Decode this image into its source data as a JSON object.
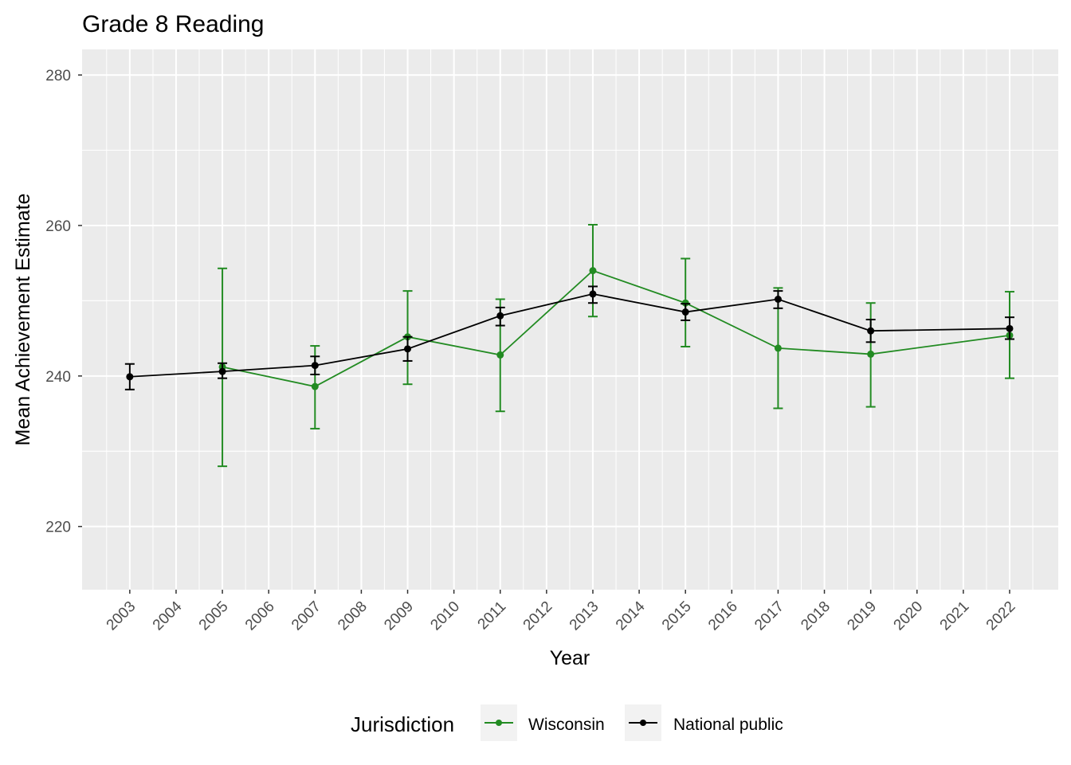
{
  "chart_data": {
    "type": "line",
    "title": "Grade 8 Reading",
    "xlabel": "Year",
    "ylabel": "Mean Achievement Estimate",
    "xlim": [
      2001.97,
      2023.05
    ],
    "ylim": [
      211.6,
      283.4
    ],
    "x_ticks": [
      2003,
      2004,
      2005,
      2006,
      2007,
      2008,
      2009,
      2010,
      2011,
      2012,
      2013,
      2014,
      2015,
      2016,
      2017,
      2018,
      2019,
      2020,
      2021,
      2022
    ],
    "y_ticks": [
      220,
      240,
      260,
      280
    ],
    "grid": true,
    "legend": {
      "title": "Jurisdiction",
      "position": "bottom"
    },
    "series": [
      {
        "name": "Wisconsin",
        "color": "#228B22",
        "x": [
          2005,
          2007,
          2009,
          2011,
          2013,
          2015,
          2017,
          2019,
          2022
        ],
        "y": [
          241.2,
          238.6,
          245.2,
          242.8,
          254.0,
          249.7,
          243.7,
          242.9,
          245.4
        ],
        "lower": [
          228.0,
          233.0,
          238.9,
          235.3,
          247.9,
          243.9,
          235.7,
          235.9,
          239.7
        ],
        "upper": [
          254.3,
          244.0,
          251.3,
          250.2,
          260.1,
          255.6,
          251.7,
          249.7,
          251.2
        ]
      },
      {
        "name": "National public",
        "color": "#000000",
        "x": [
          2003,
          2005,
          2007,
          2009,
          2011,
          2013,
          2015,
          2017,
          2019,
          2022
        ],
        "y": [
          239.9,
          240.6,
          241.4,
          243.6,
          248.0,
          250.9,
          248.5,
          250.2,
          246.0,
          246.3
        ],
        "lower": [
          238.2,
          239.7,
          240.2,
          242.0,
          246.7,
          249.7,
          247.4,
          249.0,
          244.5,
          244.9
        ],
        "upper": [
          241.6,
          241.7,
          242.6,
          245.2,
          249.1,
          251.9,
          249.6,
          251.3,
          247.5,
          247.8
        ]
      }
    ]
  }
}
